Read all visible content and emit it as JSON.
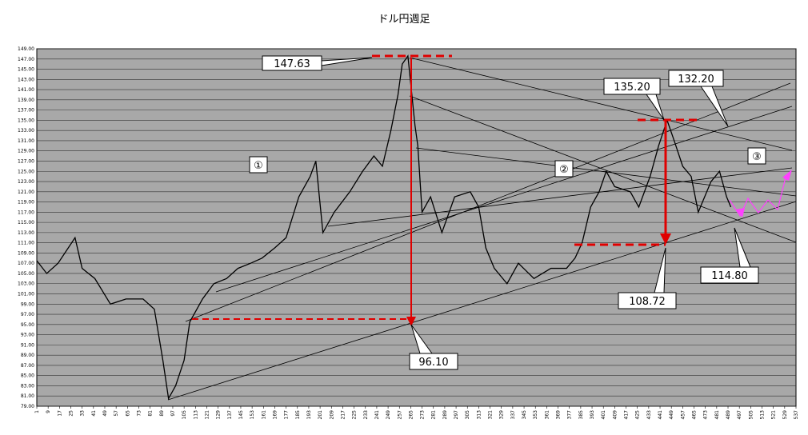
{
  "chart_data": {
    "type": "line",
    "title": "ドル円週足",
    "x": [
      1,
      8,
      16,
      28,
      33,
      42,
      53,
      64,
      76,
      84,
      90,
      94,
      99,
      105,
      109,
      118,
      126,
      135,
      143,
      152,
      160,
      169,
      177,
      186,
      194,
      198,
      203,
      211,
      222,
      231,
      239,
      245,
      251,
      256,
      259,
      263,
      268,
      270,
      273,
      279,
      287,
      296,
      307,
      313,
      318,
      324,
      333,
      341,
      352,
      364,
      375,
      381,
      386,
      392,
      398,
      403,
      409,
      420,
      426,
      434,
      440,
      446,
      451,
      457,
      463,
      468,
      477,
      483,
      488,
      491
    ],
    "values": [
      107.5,
      105,
      107,
      112,
      106,
      104,
      99,
      100,
      100,
      98,
      88,
      80.5,
      83,
      88,
      95.5,
      100,
      103,
      104,
      106,
      107,
      108,
      110,
      112,
      120,
      124,
      127,
      113,
      117,
      121,
      125,
      128,
      126,
      133,
      140,
      146,
      147.6,
      134,
      130,
      117,
      120,
      113,
      120,
      121,
      118,
      110,
      106,
      103,
      107,
      104,
      106,
      106,
      108,
      111,
      118,
      121,
      125,
      122,
      121,
      118,
      124,
      130,
      135,
      131,
      126,
      124,
      117,
      123,
      125,
      120,
      118
    ],
    "color": "#000000",
    "xlim": [
      1,
      537
    ],
    "xticks": [
      1,
      9,
      17,
      25,
      33,
      41,
      49,
      57,
      65,
      73,
      81,
      89,
      97,
      105,
      113,
      121,
      129,
      137,
      145,
      153,
      161,
      169,
      177,
      185,
      193,
      201,
      209,
      217,
      225,
      233,
      241,
      249,
      257,
      265,
      273,
      281,
      289,
      297,
      305,
      313,
      321,
      329,
      337,
      345,
      353,
      361,
      369,
      377,
      385,
      393,
      401,
      409,
      417,
      425,
      433,
      441,
      449,
      457,
      465,
      473,
      481,
      489,
      497,
      505,
      513,
      521,
      529,
      537
    ],
    "ylim": [
      79,
      149
    ],
    "yticks": [
      {
        "value": 79,
        "label": "79.00"
      },
      {
        "value": 81,
        "label": "81.00"
      },
      {
        "value": 83,
        "label": "83.00"
      },
      {
        "value": 85,
        "label": "85.00"
      },
      {
        "value": 87,
        "label": "87.00"
      },
      {
        "value": 89,
        "label": "89.00"
      },
      {
        "value": 91,
        "label": "91.00"
      },
      {
        "value": 93,
        "label": "93.00"
      },
      {
        "value": 95,
        "label": "95.00"
      },
      {
        "value": 97,
        "label": "97.00"
      },
      {
        "value": 99,
        "label": "99.00"
      },
      {
        "value": 101,
        "label": "101.00"
      },
      {
        "value": 103,
        "label": "103.00"
      },
      {
        "value": 105,
        "label": "105.00"
      },
      {
        "value": 107,
        "label": "107.00"
      },
      {
        "value": 109,
        "label": "109.00"
      },
      {
        "value": 111,
        "label": "111.00"
      },
      {
        "value": 113,
        "label": "113.00"
      },
      {
        "value": 115,
        "label": "115.00"
      },
      {
        "value": 117,
        "label": "117.00"
      },
      {
        "value": 119,
        "label": "119.00"
      },
      {
        "value": 121,
        "label": "121.00"
      },
      {
        "value": 123,
        "label": "123.00"
      },
      {
        "value": 125,
        "label": "125.00"
      },
      {
        "value": 127,
        "label": "127.00"
      },
      {
        "value": 129,
        "label": "129.00"
      },
      {
        "value": 131,
        "label": "131.00"
      },
      {
        "value": 133,
        "label": "133.00"
      },
      {
        "value": 135,
        "label": "135.00"
      },
      {
        "value": 137,
        "label": "137.00"
      },
      {
        "value": 139,
        "label": "139.00"
      },
      {
        "value": 141,
        "label": "141.00"
      },
      {
        "value": 143,
        "label": "143.00"
      },
      {
        "value": 145,
        "label": "145.00"
      },
      {
        "value": 147,
        "label": "147.00"
      },
      {
        "value": 149,
        "label": "149.00"
      }
    ],
    "grid": true,
    "annotations": {
      "high": "147.63",
      "peak2": "135.20",
      "level": "132.20",
      "low2": "108.72",
      "low1": "96.10",
      "support": "114.80",
      "wave1": "①",
      "wave2": "②",
      "wave3": "③"
    }
  }
}
